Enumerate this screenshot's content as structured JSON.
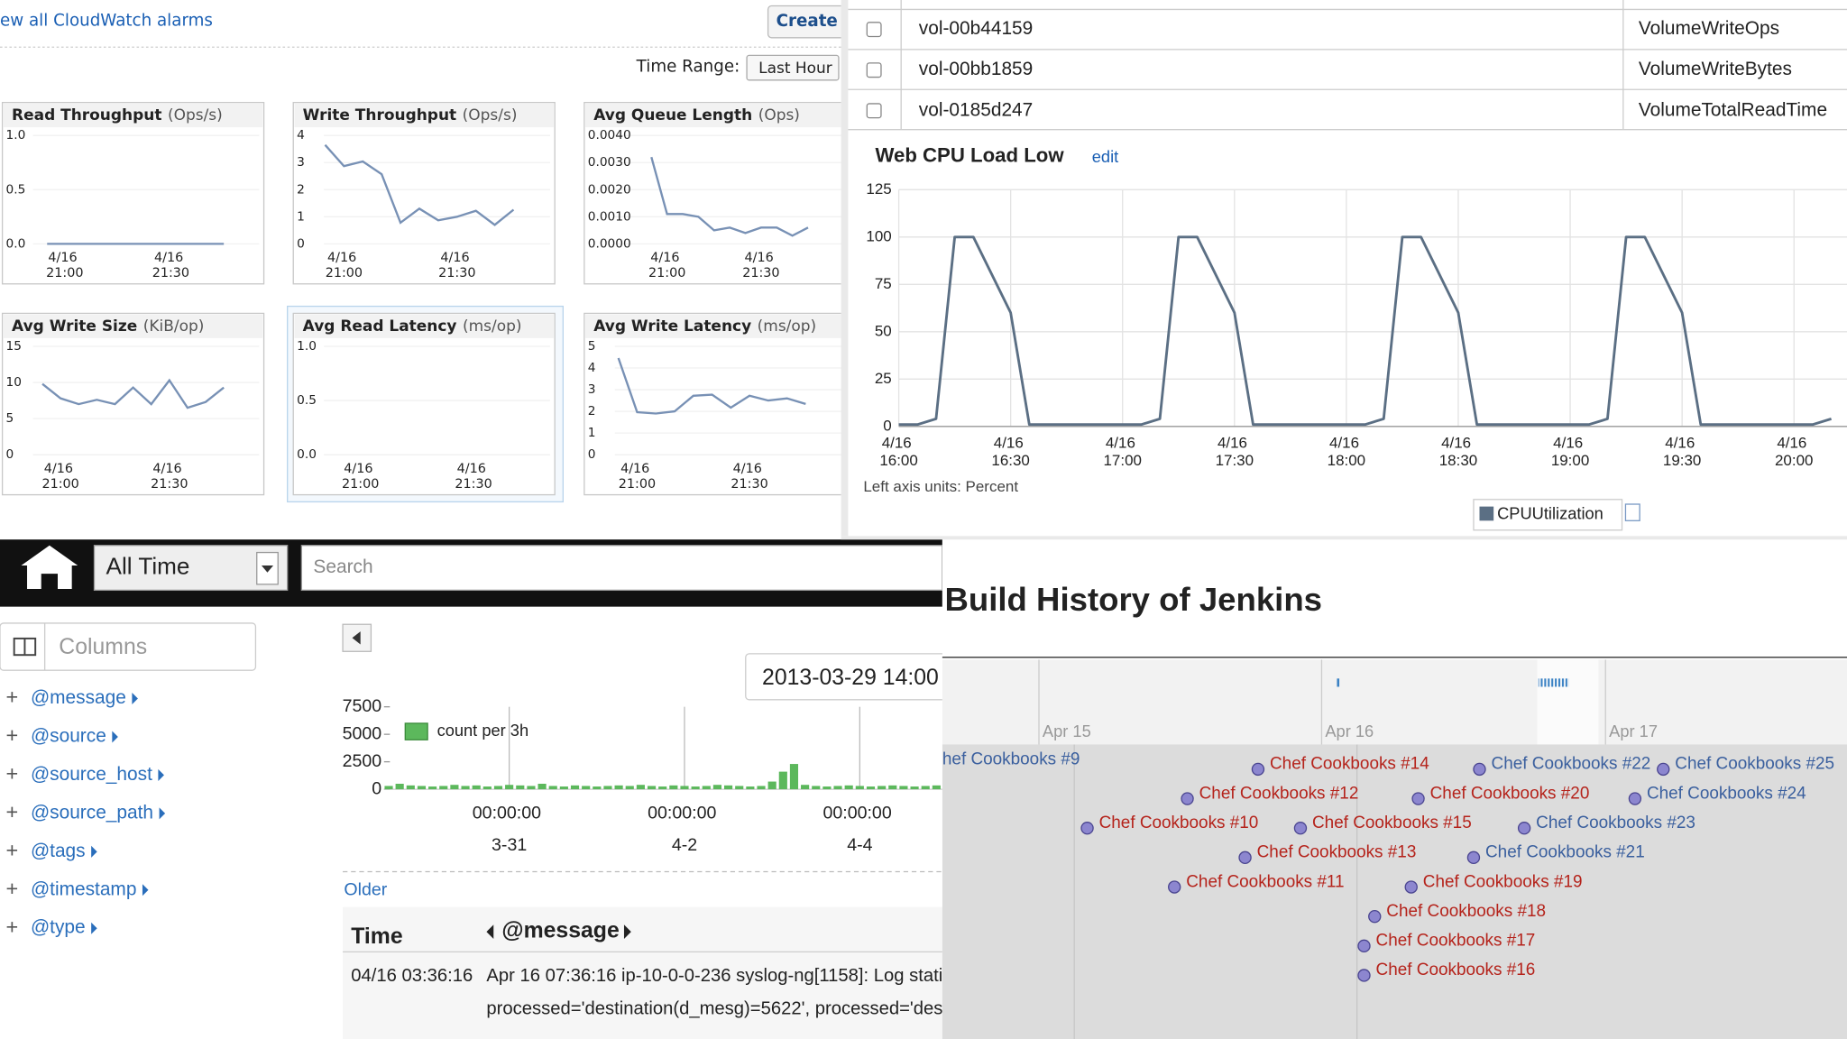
{
  "cloudwatch": {
    "alarms_link": "ew all CloudWatch alarms",
    "create_button": "Create",
    "time_range_label": "Time Range:",
    "time_range_value": "Last Hour",
    "charts": [
      {
        "type": "line",
        "title": "Read Throughput",
        "unit": "(Ops/s)",
        "color": "#7891b5",
        "ylim": [
          0,
          1
        ],
        "yticks": [
          {
            "value": 0,
            "label": "0.0"
          },
          0.5,
          {
            "value": 1,
            "label": "1.0"
          }
        ],
        "categories": [
          null,
          "4/16 21:00",
          null,
          null,
          null,
          null,
          null,
          "4/16 21:30",
          null,
          null,
          null
        ],
        "values": [
          0,
          0,
          0,
          0,
          0,
          0,
          0,
          0,
          0,
          0,
          0
        ]
      },
      {
        "type": "line",
        "title": "Write Throughput",
        "unit": "(Ops/s)",
        "color": "#7891b5",
        "ylim": [
          0,
          4
        ],
        "yticks": [
          0,
          1,
          2,
          3,
          4
        ],
        "categories": [
          null,
          "4/16 21:00",
          null,
          null,
          null,
          null,
          null,
          "4/16 21:30",
          null,
          null,
          null
        ],
        "values": [
          3.65,
          2.87,
          3.04,
          2.57,
          0.78,
          1.3,
          0.87,
          1.0,
          1.22,
          0.7,
          1.26
        ]
      },
      {
        "type": "line",
        "title": "Avg Queue Length",
        "unit": "(Ops)",
        "color": "#7891b5",
        "ylim": [
          0,
          0.004
        ],
        "yticks": [
          {
            "value": 0,
            "label": "0.0000"
          },
          {
            "value": 0.001,
            "label": "0.0010"
          },
          {
            "value": 0.002,
            "label": "0.0020"
          },
          {
            "value": 0.003,
            "label": "0.0030"
          },
          {
            "value": 0.004,
            "label": "0.0040"
          }
        ],
        "categories": [
          null,
          "4/16 21:00",
          null,
          null,
          null,
          null,
          null,
          "4/16 21:30",
          null,
          null,
          null
        ],
        "values": [
          0.0032,
          0.0011,
          0.0011,
          0.001,
          0.0005,
          0.0006,
          0.0004,
          0.0006,
          0.0006,
          0.0003,
          0.0006
        ]
      },
      {
        "type": "line",
        "title": "Avg Write Size",
        "unit": "(KiB/op)",
        "color": "#7891b5",
        "ylim": [
          0,
          15
        ],
        "yticks": [
          0,
          5,
          10,
          15
        ],
        "categories": [
          null,
          "4/16 21:00",
          null,
          null,
          null,
          null,
          null,
          "4/16 21:30",
          null,
          null,
          null
        ],
        "values": [
          9.8,
          7.8,
          7.0,
          7.6,
          7.0,
          9.3,
          7.0,
          10.3,
          6.5,
          7.3,
          9.3
        ]
      },
      {
        "type": "line",
        "title": "Avg Read Latency",
        "unit": "(ms/op)",
        "color": "#7891b5",
        "ylim": [
          0,
          1
        ],
        "yticks": [
          {
            "value": 0,
            "label": "0.0"
          },
          0.5,
          {
            "value": 1,
            "label": "1.0"
          }
        ],
        "categories": [
          null,
          "4/16 21:00",
          null,
          null,
          null,
          null,
          null,
          "4/16 21:30",
          null,
          null,
          null
        ],
        "values": [
          null,
          null,
          null,
          null,
          null,
          null,
          null,
          null,
          null,
          null,
          null
        ]
      },
      {
        "type": "line",
        "title": "Avg Write Latency",
        "unit": "(ms/op)",
        "color": "#7891b5",
        "ylim": [
          0,
          5
        ],
        "yticks": [
          0,
          1,
          2,
          3,
          4,
          5
        ],
        "categories": [
          null,
          "4/16 21:00",
          null,
          null,
          null,
          null,
          null,
          "4/16 21:30",
          null,
          null,
          null
        ],
        "values": [
          4.46,
          1.96,
          1.9,
          2.0,
          2.72,
          2.77,
          2.17,
          2.72,
          2.5,
          2.6,
          2.34
        ]
      }
    ]
  },
  "volumes": {
    "rows": [
      [
        "vol-00b44159",
        "VolumeWriteOps"
      ],
      [
        "vol-00bb1859",
        "VolumeWriteBytes"
      ],
      [
        "vol-0185d247",
        "VolumeTotalReadTime"
      ]
    ]
  },
  "cpu_chart": {
    "type": "line",
    "title": "Web CPU Load Low",
    "edit_link": "edit",
    "axis_note": "Left axis units: Percent",
    "grid": true,
    "ylim": [
      0,
      125
    ],
    "yticks": [
      0,
      25,
      50,
      75,
      100,
      125
    ],
    "categories": [
      "4/16 16:00",
      null,
      null,
      null,
      null,
      null,
      "4/16 16:30",
      null,
      null,
      null,
      null,
      null,
      "4/16 17:00",
      null,
      null,
      null,
      null,
      null,
      "4/16 17:30",
      null,
      null,
      null,
      null,
      null,
      "4/16 18:00",
      null,
      null,
      null,
      null,
      null,
      "4/16 18:30",
      null,
      null,
      null,
      null,
      null,
      "4/16 19:00",
      null,
      null,
      null,
      null,
      null,
      "4/16 19:30",
      null,
      null,
      null,
      null,
      null,
      "4/16 20:00",
      null,
      null
    ],
    "series": [
      {
        "name": "CPUUtilization",
        "color": "#5b6f84",
        "values": [
          1,
          1,
          4,
          100,
          100,
          80,
          60,
          1,
          1,
          1,
          1,
          1,
          1,
          1,
          4,
          100,
          100,
          80,
          60,
          1,
          1,
          1,
          1,
          1,
          1,
          1,
          4,
          100,
          100,
          80,
          60,
          1,
          1,
          1,
          1,
          1,
          1,
          1,
          4,
          100,
          100,
          80,
          60,
          1,
          1,
          1,
          1,
          1,
          1,
          1,
          4
        ]
      }
    ]
  },
  "kibana": {
    "time_filter": "All Time",
    "search_placeholder": "Search",
    "columns_label": "Columns",
    "fields": [
      "@message",
      "@source",
      "@source_host",
      "@source_path",
      "@tags",
      "@timestamp",
      "@type"
    ],
    "date_box": "2013-03-29 14:00",
    "histogram": {
      "type": "bar",
      "ylim": [
        0,
        7500
      ],
      "yticks": [
        0,
        2500,
        5000,
        7500
      ],
      "categories": [
        null,
        null,
        null,
        null,
        null,
        null,
        null,
        null,
        null,
        null,
        null,
        "00:00:00 3-31",
        null,
        null,
        null,
        null,
        null,
        null,
        null,
        null,
        null,
        null,
        null,
        null,
        null,
        null,
        null,
        "00:00:00 4-2",
        null,
        null,
        null,
        null,
        null,
        null,
        null,
        null,
        null,
        null,
        null,
        null,
        null,
        null,
        null,
        "00:00:00 4-4",
        null,
        null,
        null,
        null,
        null,
        null,
        null
      ],
      "series": [
        {
          "name": "count per 3h",
          "color": "#5cb85c",
          "values": [
            300,
            500,
            350,
            300,
            250,
            300,
            400,
            300,
            350,
            250,
            300,
            400,
            350,
            300,
            500,
            300,
            250,
            350,
            300,
            250,
            300,
            350,
            300,
            400,
            300,
            250,
            350,
            300,
            250,
            300,
            400,
            350,
            300,
            250,
            300,
            700,
            1600,
            2300,
            400,
            300,
            250,
            300,
            350,
            300,
            250,
            300,
            350,
            300,
            250,
            300,
            350
          ]
        }
      ]
    },
    "older_link": "Older",
    "table": {
      "headers": [
        "Time",
        "@message"
      ],
      "rows": [
        {
          "time": "04/16 03:36:16",
          "message": [
            "Apr 16 07:36:16 ip-10-0-0-236 syslog-ng[1158]: Log stati",
            "processed='destination(d_mesg)=5622', processed='dest"
          ]
        }
      ]
    }
  },
  "jenkins": {
    "title": "Build History of Jenkins",
    "timeline_labels": [
      "Apr 15",
      "Apr 16",
      "Apr 17"
    ],
    "builds": [
      {
        "label": "hef Cookbooks #9",
        "color": "#3a5f9e"
      },
      {
        "label": "Chef Cookbooks #10",
        "color": "#b5231b"
      },
      {
        "label": "Chef Cookbooks #11",
        "color": "#b5231b"
      },
      {
        "label": "Chef Cookbooks #12",
        "color": "#b5231b"
      },
      {
        "label": "Chef Cookbooks #13",
        "color": "#b5231b"
      },
      {
        "label": "Chef Cookbooks #14",
        "color": "#b5231b"
      },
      {
        "label": "Chef Cookbooks #15",
        "color": "#b5231b"
      },
      {
        "label": "Chef Cookbooks #16",
        "color": "#b5231b"
      },
      {
        "label": "Chef Cookbooks #17",
        "color": "#b5231b"
      },
      {
        "label": "Chef Cookbooks #18",
        "color": "#b5231b"
      },
      {
        "label": "Chef Cookbooks #19",
        "color": "#b5231b"
      },
      {
        "label": "Chef Cookbooks #20",
        "color": "#b5231b"
      },
      {
        "label": "Chef Cookbooks #21",
        "color": "#3a5f9e"
      },
      {
        "label": "Chef Cookbooks #22",
        "color": "#3a5f9e"
      },
      {
        "label": "Chef Cookbooks #23",
        "color": "#3a5f9e"
      },
      {
        "label": "Chef Cookbooks #24",
        "color": "#3a5f9e"
      },
      {
        "label": "Chef Cookbooks #25",
        "color": "#3a5f9e"
      }
    ]
  }
}
